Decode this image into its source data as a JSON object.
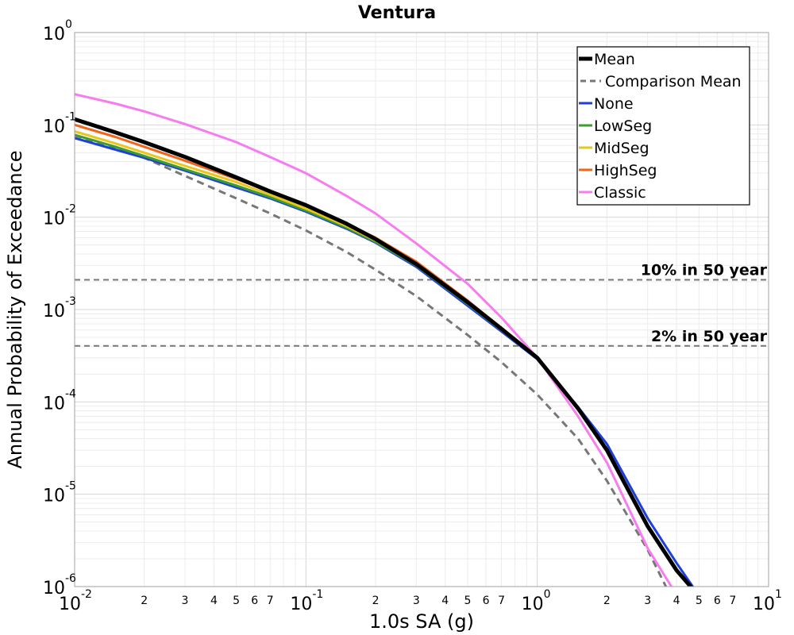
{
  "chart_data": {
    "type": "line",
    "title": "Ventura",
    "xlabel": "1.0s SA (g)",
    "ylabel": "Annual Probability of Exceedance",
    "xscale": "log",
    "yscale": "log",
    "xlim": [
      0.01,
      10
    ],
    "ylim": [
      1e-06,
      1
    ],
    "grid": true,
    "legend_position": "top-right",
    "x_major_ticks": [
      {
        "value": 0.01,
        "base": "10",
        "exp": "-2"
      },
      {
        "value": 0.1,
        "base": "10",
        "exp": "-1"
      },
      {
        "value": 1,
        "base": "10",
        "exp": "0"
      },
      {
        "value": 10,
        "base": "10",
        "exp": "1"
      }
    ],
    "y_major_ticks": [
      {
        "value": 1,
        "base": "10",
        "exp": "0"
      },
      {
        "value": 0.1,
        "base": "10",
        "exp": "-1"
      },
      {
        "value": 0.01,
        "base": "10",
        "exp": "-2"
      },
      {
        "value": 0.001,
        "base": "10",
        "exp": "-3"
      },
      {
        "value": 0.0001,
        "base": "10",
        "exp": "-4"
      },
      {
        "value": 1e-05,
        "base": "10",
        "exp": "-5"
      },
      {
        "value": 1e-06,
        "base": "10",
        "exp": "-6"
      }
    ],
    "x_minor_tick_labels": [
      "2",
      "3",
      "4",
      "5",
      "6",
      "7"
    ],
    "reference_lines": [
      {
        "label": "10% in 50 year",
        "y": 0.0021
      },
      {
        "label": "2% in 50 year",
        "y": 0.000404
      }
    ],
    "series": [
      {
        "name": "Mean",
        "color": "#000000",
        "style": "solid",
        "width": 5,
        "x": [
          0.01,
          0.015,
          0.02,
          0.03,
          0.05,
          0.07,
          0.1,
          0.15,
          0.2,
          0.3,
          0.5,
          0.7,
          1.0,
          1.5,
          2.0,
          3.0,
          4.0,
          4.6
        ],
        "y": [
          0.115,
          0.083,
          0.065,
          0.045,
          0.027,
          0.019,
          0.0135,
          0.0085,
          0.0058,
          0.0031,
          0.0012,
          0.00062,
          0.0003,
          8.5e-05,
          3e-05,
          4.5e-06,
          1.5e-06,
          1e-06
        ]
      },
      {
        "name": "Comparison Mean",
        "color": "#777777",
        "style": "dashed",
        "width": 3,
        "x": [
          0.01,
          0.015,
          0.02,
          0.03,
          0.05,
          0.07,
          0.1,
          0.15,
          0.2,
          0.3,
          0.5,
          0.7,
          1.0,
          1.5,
          2.0,
          3.0,
          3.6
        ],
        "y": [
          0.077,
          0.056,
          0.044,
          0.028,
          0.016,
          0.011,
          0.0072,
          0.0042,
          0.0027,
          0.0014,
          0.00053,
          0.00027,
          0.00012,
          4e-05,
          1.4e-05,
          2.5e-06,
          1e-06
        ]
      },
      {
        "name": "None",
        "color": "#1f3fd9",
        "style": "solid",
        "width": 3,
        "x": [
          0.01,
          0.015,
          0.02,
          0.03,
          0.05,
          0.07,
          0.1,
          0.15,
          0.2,
          0.3,
          0.5,
          0.7,
          1.0,
          1.5,
          2.0,
          3.0,
          4.0,
          4.7
        ],
        "y": [
          0.072,
          0.054,
          0.044,
          0.032,
          0.021,
          0.016,
          0.0115,
          0.0075,
          0.0053,
          0.0029,
          0.0011,
          0.00058,
          0.00029,
          8.8e-05,
          3.5e-05,
          5.5e-06,
          1.8e-06,
          1e-06
        ]
      },
      {
        "name": "LowSeg",
        "color": "#3c9e2e",
        "style": "solid",
        "width": 3,
        "x": [
          0.01,
          0.015,
          0.02,
          0.03,
          0.05,
          0.07,
          0.1,
          0.15,
          0.2,
          0.3,
          0.5,
          0.7,
          1.0
        ],
        "y": [
          0.078,
          0.058,
          0.046,
          0.033,
          0.022,
          0.0165,
          0.0118,
          0.0077,
          0.0054,
          0.003,
          0.00115,
          0.0006,
          0.0003
        ]
      },
      {
        "name": "MidSeg",
        "color": "#e8c61a",
        "style": "solid",
        "width": 3,
        "x": [
          0.01,
          0.015,
          0.02,
          0.03,
          0.05,
          0.07,
          0.1,
          0.15,
          0.2,
          0.3,
          0.5,
          0.7,
          1.0
        ],
        "y": [
          0.085,
          0.063,
          0.05,
          0.036,
          0.024,
          0.0175,
          0.0124,
          0.008,
          0.0056,
          0.0031,
          0.0012,
          0.00061,
          0.0003
        ]
      },
      {
        "name": "HighSeg",
        "color": "#f0651a",
        "style": "solid",
        "width": 3,
        "x": [
          0.01,
          0.015,
          0.02,
          0.03,
          0.05,
          0.07,
          0.1,
          0.15,
          0.2,
          0.3,
          0.5,
          0.7,
          1.0
        ],
        "y": [
          0.1,
          0.074,
          0.058,
          0.041,
          0.026,
          0.019,
          0.0134,
          0.0085,
          0.006,
          0.0033,
          0.00125,
          0.00063,
          0.0003
        ]
      },
      {
        "name": "Classic",
        "color": "#f77cf0",
        "style": "solid",
        "width": 3,
        "x": [
          0.01,
          0.015,
          0.02,
          0.03,
          0.05,
          0.07,
          0.1,
          0.15,
          0.2,
          0.3,
          0.5,
          0.7,
          1.0,
          1.5,
          2.0,
          3.0,
          3.8
        ],
        "y": [
          0.215,
          0.17,
          0.14,
          0.102,
          0.065,
          0.045,
          0.03,
          0.017,
          0.011,
          0.0052,
          0.0019,
          0.00082,
          0.0003,
          7e-05,
          2.2e-05,
          2.6e-06,
          1e-06
        ]
      }
    ]
  }
}
